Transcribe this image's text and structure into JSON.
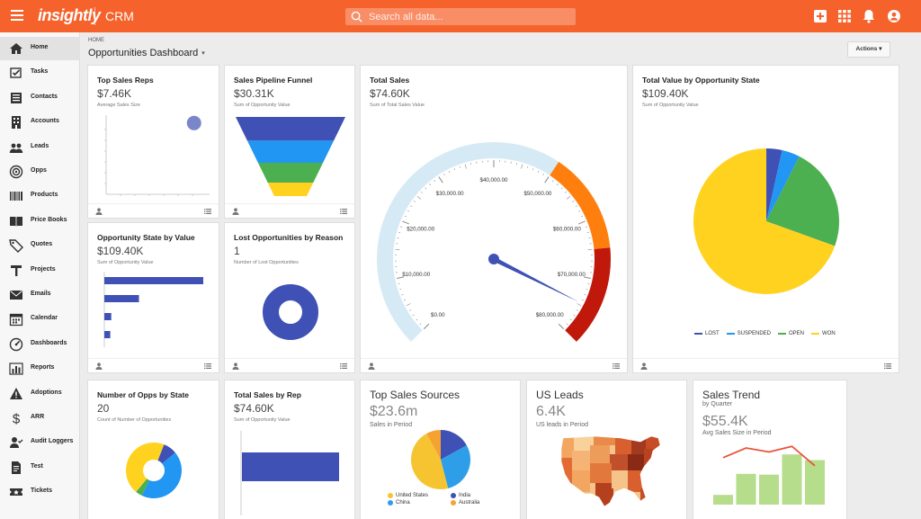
{
  "topbar": {
    "logo": "insightly",
    "app_name": "CRM",
    "search_placeholder": "Search all data...",
    "colors": {
      "bar": "#f5622b"
    }
  },
  "sidebar": {
    "items": [
      {
        "label": "Home",
        "icon": "home-icon",
        "active": true
      },
      {
        "label": "Tasks",
        "icon": "tasks-icon"
      },
      {
        "label": "Contacts",
        "icon": "contacts-icon"
      },
      {
        "label": "Accounts",
        "icon": "accounts-icon"
      },
      {
        "label": "Leads",
        "icon": "leads-icon"
      },
      {
        "label": "Opps",
        "icon": "opps-icon"
      },
      {
        "label": "Products",
        "icon": "barcode-icon"
      },
      {
        "label": "Price Books",
        "icon": "price-book-icon"
      },
      {
        "label": "Quotes",
        "icon": "tag-icon"
      },
      {
        "label": "Projects",
        "icon": "projects-icon"
      },
      {
        "label": "Emails",
        "icon": "email-icon"
      },
      {
        "label": "Calendar",
        "icon": "calendar-icon"
      },
      {
        "label": "Dashboards",
        "icon": "dashboard-icon"
      },
      {
        "label": "Reports",
        "icon": "reports-icon"
      },
      {
        "label": "Adoptions",
        "icon": "warning-icon"
      },
      {
        "label": "ARR",
        "icon": "dollar-icon"
      },
      {
        "label": "Audit Loggers",
        "icon": "audit-icon"
      },
      {
        "label": "Test",
        "icon": "document-icon"
      },
      {
        "label": "Tickets",
        "icon": "ticket-icon"
      }
    ]
  },
  "header": {
    "breadcrumb": "HOME",
    "title": "Opportunities Dashboard",
    "actions_label": "Actions"
  },
  "cards": {
    "top_reps": {
      "title": "Top Sales Reps",
      "value": "$7.46K",
      "sub": "Average Sales Size"
    },
    "pipeline": {
      "title": "Sales Pipeline Funnel",
      "value": "$30.31K",
      "sub": "Sum of Opportunity Value"
    },
    "total_sales": {
      "title": "Total Sales",
      "value": "$74.60K",
      "sub": "Sum of Total Sales Value"
    },
    "opp_state_value": {
      "title": "Total Value by Opportunity State",
      "value": "$109.40K",
      "sub": "Sum of Opportunity Value"
    },
    "opp_state": {
      "title": "Opportunity State by Value",
      "value": "$109.40K",
      "sub": "Sum of Opportunity Value"
    },
    "lost_opps": {
      "title": "Lost Opportunities by Reason",
      "value": "1",
      "sub": "Number of Lost Opportunities"
    },
    "num_opps": {
      "title": "Number of Opps by State",
      "value": "20",
      "sub": "Count of Number of Opportunities"
    },
    "sales_by_rep": {
      "title": "Total Sales by Rep",
      "value": "$74.60K",
      "sub": "Sum of Opportunity Value"
    },
    "sources": {
      "title": "Top Sales Sources",
      "value": "$23.6m",
      "sub": "Sales in Period"
    },
    "us_leads": {
      "title": "US Leads",
      "value": "6.4K",
      "sub": "US leads in Period"
    },
    "trend": {
      "title": "Sales Trend",
      "by": "by Quarter",
      "value": "$55.4K",
      "sub": "Avg Sales Size in Period"
    }
  },
  "chart_data": [
    {
      "type": "scatter",
      "title": "Top Sales Reps",
      "points": [
        {
          "x": 0.85,
          "y": 0.9
        }
      ],
      "color": "#7b86c9"
    },
    {
      "type": "funnel",
      "title": "Sales Pipeline Funnel",
      "stages": [
        {
          "value": 30,
          "color": "#3f51b5"
        },
        {
          "value": 28,
          "color": "#2196f3"
        },
        {
          "value": 25,
          "color": "#4caf50"
        },
        {
          "value": 17,
          "color": "#ffd21f"
        }
      ]
    },
    {
      "type": "gauge",
      "title": "Total Sales",
      "min": 0,
      "max": 80000,
      "value": 74600,
      "tick_labels": [
        "$0.00",
        "$10,000.00",
        "$20,000.00",
        "$30,000.00",
        "$40,000.00",
        "$50,000.00",
        "$60,000.00",
        "$70,000.00",
        "$80,000.00"
      ],
      "bands": [
        {
          "from": 0,
          "to": 50000,
          "color": "#d6eaf5"
        },
        {
          "from": 50000,
          "to": 65000,
          "color": "#ff7f0e"
        },
        {
          "from": 65000,
          "to": 80000,
          "color": "#c0180b"
        }
      ],
      "needle_color": "#3f51b5"
    },
    {
      "type": "pie",
      "title": "Total Value by Opportunity State",
      "slices": [
        {
          "name": "LOST",
          "value": 3.5,
          "color": "#3f51b5"
        },
        {
          "name": "SUSPENDED",
          "value": 4,
          "color": "#2196f3"
        },
        {
          "name": "OPEN",
          "value": 23,
          "color": "#4caf50"
        },
        {
          "name": "WON",
          "value": 69.5,
          "color": "#ffd21f"
        }
      ],
      "legend": [
        "LOST",
        "SUSPENDED",
        "OPEN",
        "WON"
      ],
      "legend_placement": "bottom"
    },
    {
      "type": "bar",
      "orientation": "horizontal",
      "title": "Opportunity State by Value",
      "values": [
        100,
        35,
        7,
        6
      ],
      "color": "#3f51b5"
    },
    {
      "type": "donut",
      "title": "Lost Opportunities by Reason",
      "slices": [
        {
          "value": 1,
          "color": "#3f51b5"
        }
      ]
    },
    {
      "type": "donut",
      "title": "Number of Opps by State",
      "slices": [
        {
          "value": 8,
          "color": "#3f51b5"
        },
        {
          "value": 43,
          "color": "#2196f3"
        },
        {
          "value": 4,
          "color": "#4caf50"
        },
        {
          "value": 45,
          "color": "#ffd21f"
        }
      ]
    },
    {
      "type": "bar",
      "orientation": "horizontal",
      "title": "Total Sales by Rep",
      "values": [
        74.6
      ],
      "color": "#3f51b5"
    },
    {
      "type": "pie",
      "title": "Top Sales Sources",
      "slices": [
        {
          "name": "India",
          "value": 17,
          "color": "#3f51b5"
        },
        {
          "name": "China",
          "value": 29,
          "color": "#2f9ee8"
        },
        {
          "name": "United States",
          "value": 46,
          "color": "#f6c430"
        },
        {
          "name": "Australia",
          "value": 8,
          "color": "#f6a233"
        }
      ],
      "legend": [
        "United States",
        "India",
        "China",
        "Australia"
      ],
      "legend_placement": "bottom"
    },
    {
      "type": "bar",
      "title": "Sales Trend",
      "values": [
        12,
        38,
        37,
        62,
        55
      ],
      "line_values": [
        58,
        70,
        65,
        72,
        48
      ],
      "bar_color": "#b5dd8b",
      "line_color": "#e8533a"
    }
  ]
}
